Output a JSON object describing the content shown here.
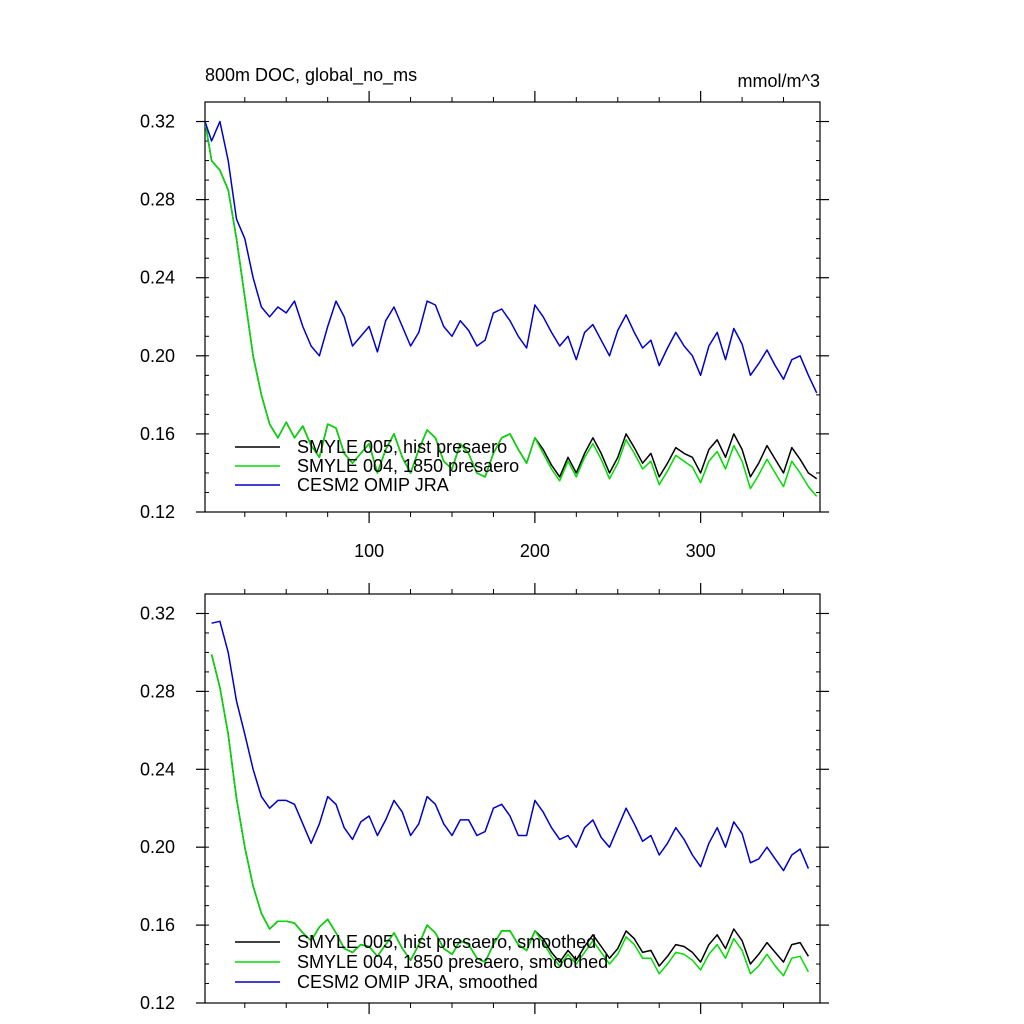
{
  "figure": {
    "title": "800m DOC, global_no_ms",
    "units": "mmol/m^3"
  },
  "chart_data": [
    {
      "type": "line",
      "title": "800m DOC, global_no_ms",
      "units": "mmol/m^3",
      "xlabel": "",
      "ylabel": "",
      "xlim": [
        1,
        372
      ],
      "ylim": [
        0.12,
        0.33
      ],
      "xticks": [
        100,
        200,
        300
      ],
      "xtick_labels": [
        "100",
        "200",
        "300"
      ],
      "yticks": [
        0.12,
        0.16,
        0.2,
        0.24,
        0.28,
        0.32
      ],
      "ytick_labels": [
        "0.12",
        "0.16",
        "0.20",
        "0.24",
        "0.28",
        "0.32"
      ],
      "legend_position": "bottom-left",
      "series": [
        {
          "name": "SMYLE 005, hist presaero",
          "color": "#000000",
          "x": [
            1,
            5,
            10,
            15,
            20,
            25,
            30,
            35,
            40,
            45,
            50,
            55,
            60,
            65,
            70,
            75,
            80,
            85,
            90,
            95,
            100,
            105,
            110,
            115,
            120,
            125,
            130,
            135,
            140,
            145,
            150,
            155,
            160,
            165,
            170,
            175,
            180,
            185,
            190,
            195,
            200,
            205,
            210,
            215,
            220,
            225,
            230,
            235,
            240,
            245,
            250,
            255,
            260,
            265,
            270,
            275,
            280,
            285,
            290,
            295,
            300,
            305,
            310,
            315,
            320,
            325,
            330,
            335,
            340,
            345,
            350,
            355,
            360,
            365,
            370
          ],
          "values": [
            0.32,
            0.3,
            0.295,
            0.285,
            0.26,
            0.23,
            0.2,
            0.18,
            0.165,
            0.158,
            0.166,
            0.158,
            0.164,
            0.154,
            0.148,
            0.165,
            0.163,
            0.15,
            0.145,
            0.15,
            0.155,
            0.14,
            0.152,
            0.16,
            0.148,
            0.14,
            0.152,
            0.162,
            0.158,
            0.146,
            0.142,
            0.155,
            0.15,
            0.14,
            0.138,
            0.15,
            0.158,
            0.16,
            0.152,
            0.145,
            0.158,
            0.152,
            0.144,
            0.138,
            0.148,
            0.14,
            0.15,
            0.158,
            0.15,
            0.14,
            0.148,
            0.16,
            0.153,
            0.145,
            0.15,
            0.138,
            0.145,
            0.153,
            0.15,
            0.148,
            0.14,
            0.152,
            0.157,
            0.148,
            0.16,
            0.152,
            0.138,
            0.145,
            0.154,
            0.147,
            0.14,
            0.153,
            0.147,
            0.14,
            0.137
          ]
        },
        {
          "name": "SMYLE 004, 1850 presaero",
          "color": "#00dd00",
          "x": [
            1,
            5,
            10,
            15,
            20,
            25,
            30,
            35,
            40,
            45,
            50,
            55,
            60,
            65,
            70,
            75,
            80,
            85,
            90,
            95,
            100,
            105,
            110,
            115,
            120,
            125,
            130,
            135,
            140,
            145,
            150,
            155,
            160,
            165,
            170,
            175,
            180,
            185,
            190,
            195,
            200,
            205,
            210,
            215,
            220,
            225,
            230,
            235,
            240,
            245,
            250,
            255,
            260,
            265,
            270,
            275,
            280,
            285,
            290,
            295,
            300,
            305,
            310,
            315,
            320,
            325,
            330,
            335,
            340,
            345,
            350,
            355,
            360,
            365,
            370
          ],
          "values": [
            0.32,
            0.3,
            0.295,
            0.285,
            0.26,
            0.23,
            0.2,
            0.18,
            0.165,
            0.158,
            0.166,
            0.158,
            0.164,
            0.154,
            0.148,
            0.165,
            0.163,
            0.15,
            0.145,
            0.15,
            0.155,
            0.14,
            0.152,
            0.16,
            0.148,
            0.14,
            0.152,
            0.162,
            0.158,
            0.146,
            0.142,
            0.155,
            0.15,
            0.14,
            0.138,
            0.15,
            0.158,
            0.16,
            0.152,
            0.145,
            0.158,
            0.15,
            0.142,
            0.136,
            0.146,
            0.138,
            0.148,
            0.155,
            0.147,
            0.137,
            0.145,
            0.157,
            0.15,
            0.142,
            0.146,
            0.134,
            0.141,
            0.149,
            0.146,
            0.143,
            0.135,
            0.146,
            0.151,
            0.142,
            0.154,
            0.146,
            0.132,
            0.139,
            0.147,
            0.14,
            0.133,
            0.146,
            0.14,
            0.133,
            0.128
          ]
        },
        {
          "name": "CESM2 OMIP JRA",
          "color": "#0000cc",
          "x": [
            1,
            5,
            10,
            15,
            20,
            25,
            30,
            35,
            40,
            45,
            50,
            55,
            60,
            65,
            70,
            75,
            80,
            85,
            90,
            95,
            100,
            105,
            110,
            115,
            120,
            125,
            130,
            135,
            140,
            145,
            150,
            155,
            160,
            165,
            170,
            175,
            180,
            185,
            190,
            195,
            200,
            205,
            210,
            215,
            220,
            225,
            230,
            235,
            240,
            245,
            250,
            255,
            260,
            265,
            270,
            275,
            280,
            285,
            290,
            295,
            300,
            305,
            310,
            315,
            320,
            325,
            330,
            335,
            340,
            345,
            350,
            355,
            360,
            365,
            370
          ],
          "values": [
            0.32,
            0.31,
            0.32,
            0.3,
            0.27,
            0.26,
            0.24,
            0.225,
            0.22,
            0.225,
            0.222,
            0.228,
            0.215,
            0.205,
            0.2,
            0.215,
            0.228,
            0.22,
            0.205,
            0.21,
            0.215,
            0.202,
            0.218,
            0.225,
            0.215,
            0.205,
            0.212,
            0.228,
            0.226,
            0.215,
            0.21,
            0.218,
            0.213,
            0.205,
            0.208,
            0.222,
            0.224,
            0.218,
            0.21,
            0.204,
            0.226,
            0.22,
            0.212,
            0.205,
            0.21,
            0.198,
            0.212,
            0.216,
            0.208,
            0.2,
            0.213,
            0.221,
            0.212,
            0.204,
            0.208,
            0.195,
            0.204,
            0.212,
            0.205,
            0.2,
            0.19,
            0.205,
            0.212,
            0.198,
            0.214,
            0.206,
            0.19,
            0.196,
            0.203,
            0.195,
            0.188,
            0.198,
            0.2,
            0.19,
            0.181
          ]
        }
      ]
    },
    {
      "type": "line",
      "title": "",
      "xlabel": "",
      "ylabel": "",
      "xlim": [
        1,
        372
      ],
      "ylim": [
        0.12,
        0.33
      ],
      "xticks": [
        100,
        200,
        300
      ],
      "xtick_labels": [
        "",
        "",
        ""
      ],
      "yticks": [
        0.12,
        0.16,
        0.2,
        0.24,
        0.28,
        0.32
      ],
      "ytick_labels": [
        "0.12",
        "0.16",
        "0.20",
        "0.24",
        "0.28",
        "0.32"
      ],
      "legend_position": "bottom-left",
      "series": [
        {
          "name": "SMYLE 005, hist presaero, smoothed",
          "color": "#000000",
          "x": [
            5,
            10,
            15,
            20,
            25,
            30,
            35,
            40,
            45,
            50,
            55,
            60,
            65,
            70,
            75,
            80,
            85,
            90,
            95,
            100,
            105,
            110,
            115,
            120,
            125,
            130,
            135,
            140,
            145,
            150,
            155,
            160,
            165,
            170,
            175,
            180,
            185,
            190,
            195,
            200,
            205,
            210,
            215,
            220,
            225,
            230,
            235,
            240,
            245,
            250,
            255,
            260,
            265,
            270,
            275,
            280,
            285,
            290,
            295,
            300,
            305,
            310,
            315,
            320,
            325,
            330,
            335,
            340,
            345,
            350,
            355,
            360,
            365
          ],
          "values": [
            0.299,
            0.282,
            0.258,
            0.225,
            0.2,
            0.18,
            0.166,
            0.158,
            0.162,
            0.162,
            0.161,
            0.156,
            0.152,
            0.159,
            0.163,
            0.156,
            0.148,
            0.146,
            0.15,
            0.149,
            0.144,
            0.15,
            0.156,
            0.148,
            0.142,
            0.15,
            0.16,
            0.156,
            0.148,
            0.145,
            0.152,
            0.15,
            0.143,
            0.141,
            0.15,
            0.157,
            0.157,
            0.15,
            0.147,
            0.157,
            0.153,
            0.146,
            0.141,
            0.147,
            0.142,
            0.149,
            0.155,
            0.149,
            0.143,
            0.148,
            0.157,
            0.153,
            0.146,
            0.147,
            0.139,
            0.144,
            0.15,
            0.149,
            0.146,
            0.141,
            0.15,
            0.155,
            0.148,
            0.158,
            0.152,
            0.14,
            0.145,
            0.151,
            0.146,
            0.141,
            0.15,
            0.151,
            0.144
          ]
        },
        {
          "name": "SMYLE 004, 1850 presaero, smoothed",
          "color": "#00dd00",
          "x": [
            5,
            10,
            15,
            20,
            25,
            30,
            35,
            40,
            45,
            50,
            55,
            60,
            65,
            70,
            75,
            80,
            85,
            90,
            95,
            100,
            105,
            110,
            115,
            120,
            125,
            130,
            135,
            140,
            145,
            150,
            155,
            160,
            165,
            170,
            175,
            180,
            185,
            190,
            195,
            200,
            205,
            210,
            215,
            220,
            225,
            230,
            235,
            240,
            245,
            250,
            255,
            260,
            265,
            270,
            275,
            280,
            285,
            290,
            295,
            300,
            305,
            310,
            315,
            320,
            325,
            330,
            335,
            340,
            345,
            350,
            355,
            360,
            365
          ],
          "values": [
            0.299,
            0.282,
            0.258,
            0.225,
            0.2,
            0.18,
            0.166,
            0.158,
            0.162,
            0.162,
            0.161,
            0.156,
            0.152,
            0.159,
            0.163,
            0.156,
            0.148,
            0.146,
            0.15,
            0.149,
            0.144,
            0.15,
            0.156,
            0.148,
            0.142,
            0.15,
            0.16,
            0.156,
            0.148,
            0.145,
            0.152,
            0.15,
            0.143,
            0.141,
            0.15,
            0.157,
            0.157,
            0.15,
            0.147,
            0.157,
            0.151,
            0.144,
            0.139,
            0.145,
            0.14,
            0.146,
            0.152,
            0.146,
            0.14,
            0.145,
            0.154,
            0.15,
            0.143,
            0.143,
            0.135,
            0.14,
            0.146,
            0.145,
            0.142,
            0.137,
            0.145,
            0.15,
            0.143,
            0.153,
            0.147,
            0.135,
            0.139,
            0.145,
            0.139,
            0.134,
            0.143,
            0.144,
            0.136
          ]
        },
        {
          "name": "CESM2 OMIP JRA, smoothed",
          "color": "#0000cc",
          "x": [
            5,
            10,
            15,
            20,
            25,
            30,
            35,
            40,
            45,
            50,
            55,
            60,
            65,
            70,
            75,
            80,
            85,
            90,
            95,
            100,
            105,
            110,
            115,
            120,
            125,
            130,
            135,
            140,
            145,
            150,
            155,
            160,
            165,
            170,
            175,
            180,
            185,
            190,
            195,
            200,
            205,
            210,
            215,
            220,
            225,
            230,
            235,
            240,
            245,
            250,
            255,
            260,
            265,
            270,
            275,
            280,
            285,
            290,
            295,
            300,
            305,
            310,
            315,
            320,
            325,
            330,
            335,
            340,
            345,
            350,
            355,
            360,
            365
          ],
          "values": [
            0.315,
            0.316,
            0.3,
            0.275,
            0.258,
            0.24,
            0.226,
            0.22,
            0.224,
            0.224,
            0.222,
            0.212,
            0.202,
            0.212,
            0.226,
            0.222,
            0.21,
            0.204,
            0.213,
            0.216,
            0.206,
            0.214,
            0.224,
            0.218,
            0.206,
            0.212,
            0.226,
            0.222,
            0.212,
            0.206,
            0.214,
            0.214,
            0.206,
            0.208,
            0.22,
            0.222,
            0.216,
            0.206,
            0.206,
            0.224,
            0.218,
            0.21,
            0.204,
            0.206,
            0.2,
            0.21,
            0.214,
            0.205,
            0.2,
            0.21,
            0.22,
            0.212,
            0.203,
            0.206,
            0.196,
            0.202,
            0.21,
            0.204,
            0.196,
            0.19,
            0.202,
            0.21,
            0.2,
            0.213,
            0.207,
            0.192,
            0.194,
            0.2,
            0.194,
            0.188,
            0.196,
            0.199,
            0.189
          ]
        }
      ]
    }
  ]
}
